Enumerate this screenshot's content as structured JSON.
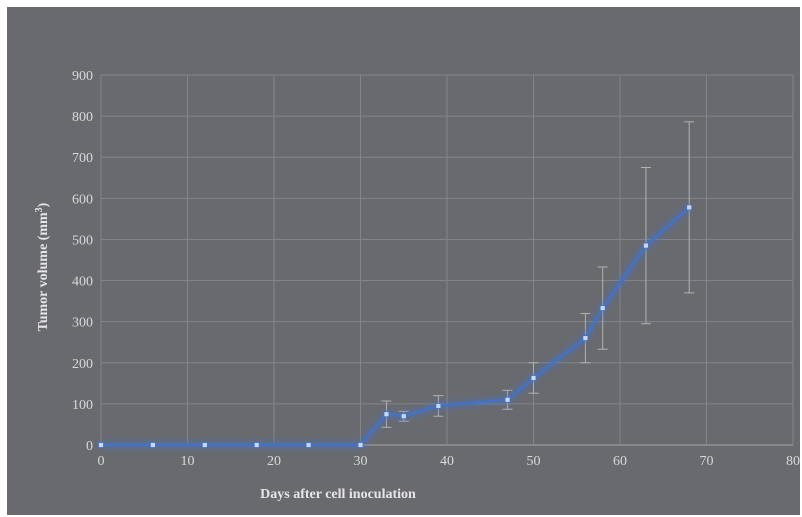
{
  "chart_data": {
    "type": "line",
    "title": "",
    "xlabel": "Days after  cell inoculation",
    "ylabel_main": "Tumor volume (mm",
    "ylabel_sup": "3",
    "ylabel_end": ")",
    "xlim": [
      0,
      80
    ],
    "ylim": [
      0,
      900
    ],
    "xticks": [
      0,
      10,
      20,
      30,
      40,
      50,
      60,
      70,
      80
    ],
    "yticks": [
      0,
      100,
      200,
      300,
      400,
      500,
      600,
      700,
      800,
      900
    ],
    "grid": true,
    "legend": "none",
    "series": [
      {
        "color": "#4472c4",
        "x": [
          0,
          6,
          12,
          18,
          24,
          30,
          33,
          35,
          39,
          47,
          50,
          56,
          58,
          63,
          68
        ],
        "y": [
          0,
          0,
          0,
          0,
          0,
          0,
          75,
          70,
          95,
          110,
          163,
          260,
          333,
          485,
          578
        ],
        "error": [
          0,
          0,
          0,
          0,
          0,
          0,
          32,
          12,
          25,
          23,
          37,
          60,
          100,
          190,
          208
        ]
      }
    ]
  }
}
